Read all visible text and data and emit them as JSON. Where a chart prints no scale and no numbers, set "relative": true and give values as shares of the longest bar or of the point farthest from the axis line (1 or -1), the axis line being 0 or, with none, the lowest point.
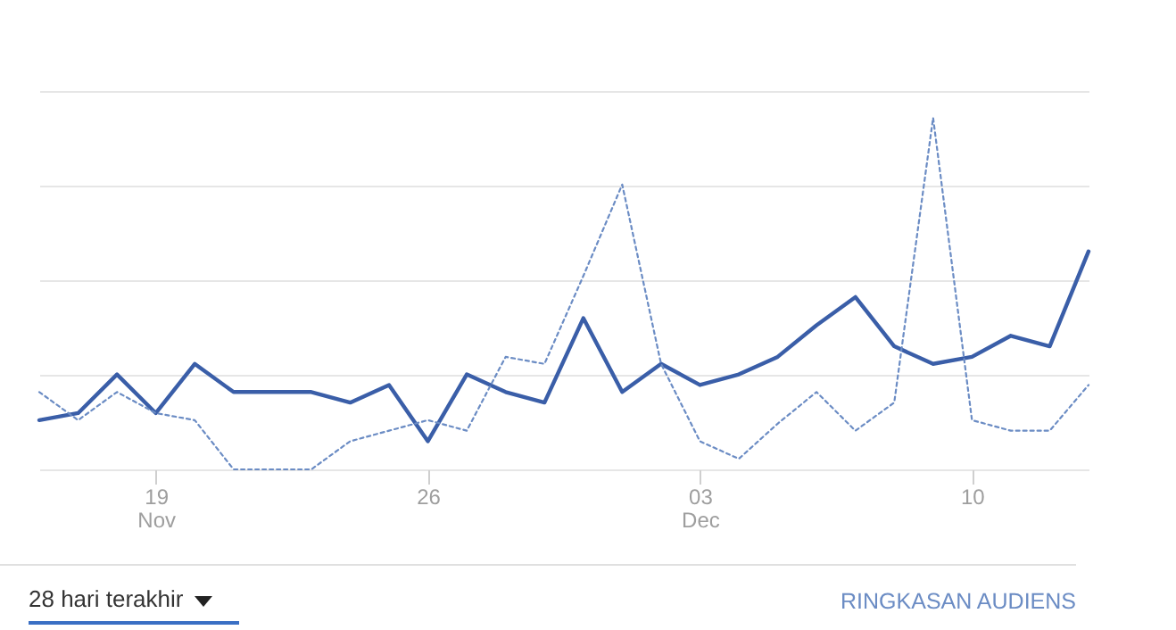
{
  "chart_data": {
    "type": "line",
    "relative": true,
    "x": [
      "--11-16",
      "--11-17",
      "--11-18",
      "--11-19",
      "--11-20",
      "--11-21",
      "--11-22",
      "--11-23",
      "--11-24",
      "--11-25",
      "--11-26",
      "--11-27",
      "--11-28",
      "--11-29",
      "--11-30",
      "--12-01",
      "--12-02",
      "--12-03",
      "--12-04",
      "--12-05",
      "--12-06",
      "--12-07",
      "--12-08",
      "--12-09",
      "--12-10",
      "--12-11",
      "--12-12",
      "--12-13"
    ],
    "xlim": [
      "--11-16",
      "--12-13"
    ],
    "xticks": [
      {
        "value": "--11-19",
        "label": "19\nNov"
      },
      {
        "value": "--11-26",
        "label": "26"
      },
      {
        "value": "--12-03",
        "label": "03\nDec"
      },
      {
        "value": "--12-10",
        "label": "10"
      }
    ],
    "series": [
      {
        "color": "#3a5ea8",
        "line_style": "solid",
        "values": [
          0.14,
          0.16,
          0.27,
          0.16,
          0.3,
          0.22,
          0.22,
          0.22,
          0.19,
          0.24,
          0.08,
          0.27,
          0.22,
          0.19,
          0.43,
          0.22,
          0.3,
          0.24,
          0.27,
          0.32,
          0.41,
          0.49,
          0.35,
          0.3,
          0.32,
          0.38,
          0.35,
          0.62
        ]
      },
      {
        "color": "#6b8cc4",
        "line_style": "dotted",
        "values": [
          0.22,
          0.14,
          0.22,
          0.16,
          0.14,
          0,
          0,
          0,
          0.08,
          0.11,
          0.14,
          0.11,
          0.32,
          0.3,
          0.55,
          0.81,
          0.3,
          0.08,
          0.03,
          0.13,
          0.22,
          0.11,
          0.19,
          1,
          0.14,
          0.11,
          0.11,
          0.24
        ]
      }
    ],
    "grid": "y",
    "marker": "none",
    "annotations": [
      "28 hari terakhir",
      "RINGKASAN AUDIENS"
    ]
  }
}
